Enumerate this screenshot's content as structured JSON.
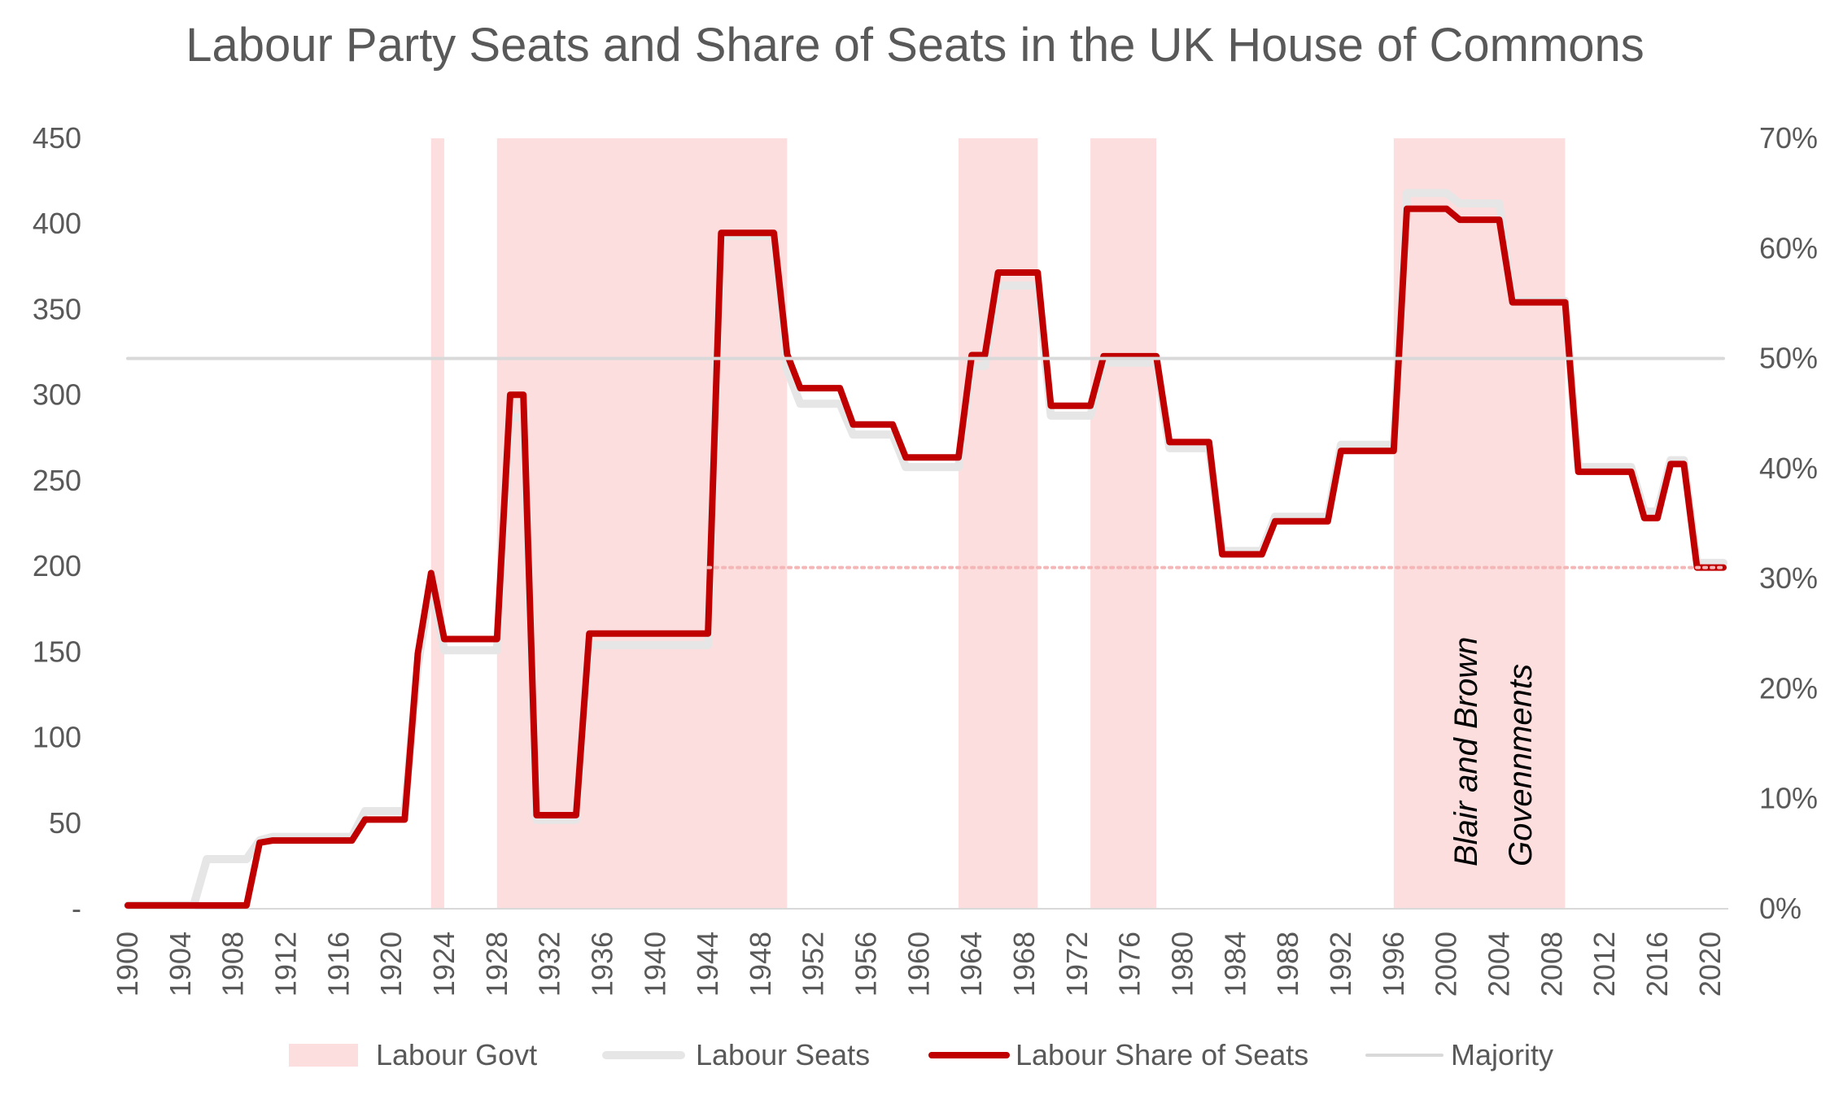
{
  "chart_data": {
    "type": "line",
    "title": "Labour Party Seats and Share of Seats in the UK House of Commons",
    "xlabel": "",
    "ylabel_left": "",
    "ylabel_right": "",
    "x_range": [
      1900,
      2021
    ],
    "ylim_left": [
      0,
      450
    ],
    "ylim_right": [
      0,
      0.7
    ],
    "left_ticks": [
      {
        "v": 0,
        "label": "-"
      },
      {
        "v": 50,
        "label": "50"
      },
      {
        "v": 100,
        "label": "100"
      },
      {
        "v": 150,
        "label": "150"
      },
      {
        "v": 200,
        "label": "200"
      },
      {
        "v": 250,
        "label": "250"
      },
      {
        "v": 300,
        "label": "300"
      },
      {
        "v": 350,
        "label": "350"
      },
      {
        "v": 400,
        "label": "400"
      },
      {
        "v": 450,
        "label": "450"
      }
    ],
    "right_ticks": [
      {
        "v": 0.0,
        "label": "0%"
      },
      {
        "v": 0.1,
        "label": "10%"
      },
      {
        "v": 0.2,
        "label": "20%"
      },
      {
        "v": 0.3,
        "label": "30%"
      },
      {
        "v": 0.4,
        "label": "40%"
      },
      {
        "v": 0.5,
        "label": "50%"
      },
      {
        "v": 0.6,
        "label": "60%"
      },
      {
        "v": 0.7,
        "label": "70%"
      }
    ],
    "x_ticks": [
      "1900",
      "1904",
      "1908",
      "1912",
      "1916",
      "1920",
      "1924",
      "1928",
      "1932",
      "1936",
      "1940",
      "1944",
      "1948",
      "1952",
      "1956",
      "1960",
      "1964",
      "1968",
      "1972",
      "1976",
      "1980",
      "1984",
      "1988",
      "1992",
      "1996",
      "2000",
      "2004",
      "2008",
      "2012",
      "2016",
      "2020"
    ],
    "labour_govt_periods": [
      {
        "start": 1923,
        "end": 1924
      },
      {
        "start": 1928,
        "end": 1950
      },
      {
        "start": 1963,
        "end": 1969
      },
      {
        "start": 1973,
        "end": 1978
      },
      {
        "start": 1996,
        "end": 2009
      }
    ],
    "series": [
      {
        "name": "Labour Seats",
        "axis": "left",
        "color": "#e6e6e6",
        "points": [
          [
            1900,
            2
          ],
          [
            1905,
            2
          ],
          [
            1906,
            29
          ],
          [
            1909,
            29
          ],
          [
            1910,
            40
          ],
          [
            1911,
            42
          ],
          [
            1917,
            42
          ],
          [
            1918,
            57
          ],
          [
            1921,
            57
          ],
          [
            1922,
            142
          ],
          [
            1923,
            191
          ],
          [
            1924,
            151
          ],
          [
            1928,
            151
          ],
          [
            1929,
            287
          ],
          [
            1930,
            287
          ],
          [
            1931,
            52
          ],
          [
            1934,
            52
          ],
          [
            1935,
            154
          ],
          [
            1944,
            154
          ],
          [
            1945,
            393
          ],
          [
            1949,
            393
          ],
          [
            1950,
            315
          ],
          [
            1951,
            295
          ],
          [
            1954,
            295
          ],
          [
            1955,
            277
          ],
          [
            1958,
            277
          ],
          [
            1959,
            258
          ],
          [
            1963,
            258
          ],
          [
            1964,
            317
          ],
          [
            1965,
            317
          ],
          [
            1966,
            364
          ],
          [
            1969,
            364
          ],
          [
            1970,
            288
          ],
          [
            1973,
            288
          ],
          [
            1974,
            319
          ],
          [
            1978,
            319
          ],
          [
            1979,
            269
          ],
          [
            1982,
            269
          ],
          [
            1983,
            209
          ],
          [
            1986,
            209
          ],
          [
            1987,
            229
          ],
          [
            1991,
            229
          ],
          [
            1992,
            271
          ],
          [
            1996,
            271
          ],
          [
            1997,
            418
          ],
          [
            2000,
            418
          ],
          [
            2001,
            412
          ],
          [
            2004,
            412
          ],
          [
            2005,
            355
          ],
          [
            2009,
            355
          ],
          [
            2010,
            258
          ],
          [
            2014,
            258
          ],
          [
            2015,
            232
          ],
          [
            2016,
            232
          ],
          [
            2017,
            262
          ],
          [
            2018,
            262
          ],
          [
            2019,
            202
          ],
          [
            2021,
            202
          ]
        ]
      },
      {
        "name": "Labour Share of Seats",
        "axis": "right",
        "color": "#c00000",
        "points": [
          [
            1900,
            0.003
          ],
          [
            1909,
            0.003
          ],
          [
            1910,
            0.06
          ],
          [
            1911,
            0.062
          ],
          [
            1917,
            0.062
          ],
          [
            1918,
            0.081
          ],
          [
            1921,
            0.081
          ],
          [
            1922,
            0.232
          ],
          [
            1923,
            0.305
          ],
          [
            1924,
            0.245
          ],
          [
            1928,
            0.245
          ],
          [
            1929,
            0.467
          ],
          [
            1930,
            0.467
          ],
          [
            1931,
            0.085
          ],
          [
            1934,
            0.085
          ],
          [
            1935,
            0.25
          ],
          [
            1944,
            0.25
          ],
          [
            1945,
            0.614
          ],
          [
            1949,
            0.614
          ],
          [
            1950,
            0.504
          ],
          [
            1951,
            0.473
          ],
          [
            1954,
            0.473
          ],
          [
            1955,
            0.44
          ],
          [
            1958,
            0.44
          ],
          [
            1959,
            0.41
          ],
          [
            1963,
            0.41
          ],
          [
            1964,
            0.503
          ],
          [
            1965,
            0.503
          ],
          [
            1966,
            0.578
          ],
          [
            1969,
            0.578
          ],
          [
            1970,
            0.457
          ],
          [
            1973,
            0.457
          ],
          [
            1974,
            0.502
          ],
          [
            1978,
            0.502
          ],
          [
            1979,
            0.424
          ],
          [
            1982,
            0.424
          ],
          [
            1983,
            0.322
          ],
          [
            1986,
            0.322
          ],
          [
            1987,
            0.352
          ],
          [
            1991,
            0.352
          ],
          [
            1992,
            0.416
          ],
          [
            1996,
            0.416
          ],
          [
            1997,
            0.636
          ],
          [
            2000,
            0.636
          ],
          [
            2001,
            0.626
          ],
          [
            2004,
            0.626
          ],
          [
            2005,
            0.551
          ],
          [
            2009,
            0.551
          ],
          [
            2010,
            0.397
          ],
          [
            2014,
            0.397
          ],
          [
            2015,
            0.355
          ],
          [
            2016,
            0.355
          ],
          [
            2017,
            0.404
          ],
          [
            2018,
            0.404
          ],
          [
            2019,
            0.31
          ],
          [
            2021,
            0.31
          ]
        ]
      },
      {
        "name": "Majority",
        "axis": "right",
        "color": "#d9d9d9",
        "points": [
          [
            1900,
            0.5
          ],
          [
            2021,
            0.5
          ]
        ]
      }
    ],
    "reference_line": {
      "axis": "right",
      "value": 0.31,
      "from_x": 1944,
      "to_x": 2021,
      "style": "dotted",
      "color": "#f4b6b6"
    },
    "annotation": {
      "lines": [
        "Blair and Brown",
        "Govennments"
      ]
    },
    "legend": {
      "placement": "bottom",
      "items": [
        {
          "label": "Labour Govt",
          "kind": "area",
          "color": "#fddede"
        },
        {
          "label": "Labour Seats",
          "kind": "line",
          "color": "#e6e6e6"
        },
        {
          "label": "Labour Share of Seats",
          "kind": "line",
          "color": "#c00000"
        },
        {
          "label": "Majority",
          "kind": "line",
          "color": "#d9d9d9"
        }
      ]
    },
    "colors": {
      "govt_shade": "#fddede",
      "text": "#595959",
      "axis": "#d9d9d9"
    }
  }
}
